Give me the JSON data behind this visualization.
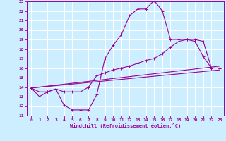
{
  "xlabel": "Windchill (Refroidissement éolien,°C)",
  "background_color": "#cceeff",
  "grid_color": "#ffffff",
  "line_color": "#990099",
  "xlim": [
    -0.5,
    23.5
  ],
  "ylim": [
    11,
    23
  ],
  "xticks": [
    0,
    1,
    2,
    3,
    4,
    5,
    6,
    7,
    8,
    9,
    10,
    11,
    12,
    13,
    14,
    15,
    16,
    17,
    18,
    19,
    20,
    21,
    22,
    23
  ],
  "yticks": [
    11,
    12,
    13,
    14,
    15,
    16,
    17,
    18,
    19,
    20,
    21,
    22,
    23
  ],
  "series1_x": [
    0,
    1,
    2,
    3,
    4,
    5,
    6,
    7,
    8,
    9,
    10,
    11,
    12,
    13,
    14,
    15,
    16,
    17,
    18,
    19,
    20,
    21,
    22,
    23
  ],
  "series1_y": [
    13.9,
    13.0,
    13.5,
    13.8,
    12.1,
    11.6,
    11.6,
    11.6,
    13.2,
    17.0,
    18.4,
    19.5,
    21.5,
    22.2,
    22.2,
    23.1,
    22.0,
    19.0,
    19.0,
    19.0,
    18.8,
    17.2,
    16.0,
    16.0
  ],
  "series2_x": [
    0,
    1,
    2,
    3,
    4,
    5,
    6,
    7,
    8,
    9,
    10,
    11,
    12,
    13,
    14,
    15,
    16,
    17,
    18,
    19,
    20,
    21,
    22,
    23
  ],
  "series2_y": [
    13.9,
    13.5,
    13.5,
    13.8,
    13.5,
    13.5,
    13.5,
    14.0,
    15.2,
    15.5,
    15.8,
    16.0,
    16.2,
    16.5,
    16.8,
    17.0,
    17.5,
    18.2,
    18.8,
    19.0,
    19.0,
    18.8,
    16.0,
    16.0
  ],
  "series3_x": [
    0,
    23
  ],
  "series3_y": [
    13.9,
    16.2
  ],
  "series4_x": [
    0,
    23
  ],
  "series4_y": [
    13.9,
    15.8
  ]
}
